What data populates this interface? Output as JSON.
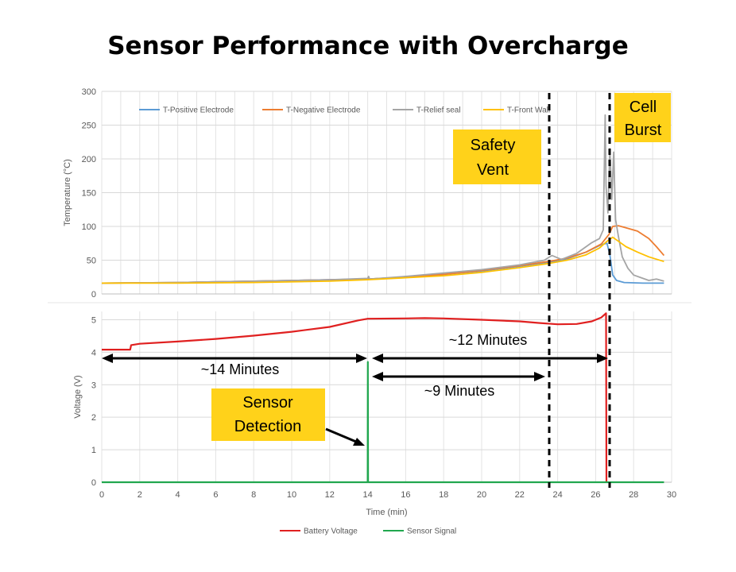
{
  "slide_title": "Sensor Performance with Overcharge",
  "colors": {
    "positive": "#5B9BD5",
    "negative": "#ED7D31",
    "relief": "#A5A5A5",
    "front": "#FFC000",
    "voltage": "#E02020",
    "sensor": "#21A74F",
    "callout": "#FFD21A"
  },
  "chart_data": [
    {
      "type": "line",
      "ylabel": "Temperature (°C)",
      "ylim": [
        0,
        300
      ],
      "yticks": [
        "0",
        "50",
        "100",
        "150",
        "200",
        "250",
        "300"
      ],
      "xlim": [
        0,
        30
      ],
      "grid": true,
      "legend_position": "top",
      "series": [
        {
          "name": "T-Positive Electrode",
          "color": "#5B9BD5",
          "points": [
            [
              0,
              16
            ],
            [
              4,
              17
            ],
            [
              8,
              19
            ],
            [
              12,
              21
            ],
            [
              14,
              22
            ],
            [
              16,
              25
            ],
            [
              18,
              29
            ],
            [
              20,
              34
            ],
            [
              22,
              41
            ],
            [
              23.5,
              47
            ],
            [
              24.5,
              52
            ],
            [
              25.5,
              62
            ],
            [
              26.3,
              73
            ],
            [
              26.6,
              75
            ],
            [
              26.75,
              58
            ],
            [
              26.9,
              28
            ],
            [
              27.1,
              20
            ],
            [
              27.5,
              17
            ],
            [
              28.5,
              16
            ],
            [
              29.6,
              16
            ]
          ]
        },
        {
          "name": "T-Negative Electrode",
          "color": "#ED7D31",
          "points": [
            [
              0,
              16
            ],
            [
              4,
              17
            ],
            [
              8,
              19
            ],
            [
              12,
              21
            ],
            [
              14,
              22
            ],
            [
              16,
              25
            ],
            [
              18,
              29
            ],
            [
              20,
              35
            ],
            [
              22,
              42
            ],
            [
              23.5,
              48
            ],
            [
              24.5,
              53
            ],
            [
              25.5,
              62
            ],
            [
              26.3,
              74
            ],
            [
              26.7,
              88
            ],
            [
              26.9,
              100
            ],
            [
              27.2,
              101
            ],
            [
              27.6,
              98
            ],
            [
              28.2,
              93
            ],
            [
              28.8,
              82
            ],
            [
              29.2,
              70
            ],
            [
              29.6,
              57
            ]
          ]
        },
        {
          "name": "T-Relief seal",
          "color": "#A5A5A5",
          "points": [
            [
              0,
              16
            ],
            [
              4,
              17
            ],
            [
              8,
              19
            ],
            [
              12,
              21
            ],
            [
              14,
              23
            ],
            [
              14.05,
              26
            ],
            [
              14.1,
              22
            ],
            [
              16,
              26
            ],
            [
              18,
              31
            ],
            [
              20,
              36
            ],
            [
              22,
              43
            ],
            [
              23.3,
              50
            ],
            [
              23.7,
              57
            ],
            [
              24.2,
              51
            ],
            [
              25,
              60
            ],
            [
              25.8,
              76
            ],
            [
              26.2,
              82
            ],
            [
              26.4,
              95
            ],
            [
              26.5,
              265
            ],
            [
              26.55,
              160
            ],
            [
              26.65,
              120
            ],
            [
              26.75,
              215
            ],
            [
              26.85,
              140
            ],
            [
              26.95,
              210
            ],
            [
              27.05,
              110
            ],
            [
              27.2,
              85
            ],
            [
              27.4,
              55
            ],
            [
              27.7,
              38
            ],
            [
              28,
              28
            ],
            [
              28.4,
              24
            ],
            [
              28.8,
              20
            ],
            [
              29.2,
              22
            ],
            [
              29.6,
              19
            ]
          ]
        },
        {
          "name": "T-Front Wall",
          "color": "#FFC000",
          "points": [
            [
              0,
              16
            ],
            [
              4,
              16
            ],
            [
              8,
              17
            ],
            [
              12,
              19
            ],
            [
              14,
              21
            ],
            [
              16,
              24
            ],
            [
              18,
              27
            ],
            [
              20,
              32
            ],
            [
              22,
              39
            ],
            [
              23.5,
              45
            ],
            [
              24.5,
              50
            ],
            [
              25.5,
              58
            ],
            [
              26.2,
              68
            ],
            [
              26.6,
              78
            ],
            [
              26.9,
              84
            ],
            [
              27.2,
              78
            ],
            [
              27.6,
              70
            ],
            [
              28.2,
              62
            ],
            [
              28.8,
              55
            ],
            [
              29.6,
              48
            ]
          ]
        }
      ]
    },
    {
      "type": "line",
      "xlabel": "Time (min)",
      "ylabel": "Voltage (V)",
      "ylim": [
        0,
        5.5
      ],
      "yticks": [
        "0",
        "1",
        "2",
        "3",
        "4",
        "5"
      ],
      "xlim": [
        0,
        30
      ],
      "xticks": [
        "0",
        "2",
        "4",
        "6",
        "8",
        "10",
        "12",
        "14",
        "16",
        "18",
        "20",
        "22",
        "24",
        "26",
        "28",
        "30"
      ],
      "grid": true,
      "legend_position": "bottom",
      "series": [
        {
          "name": "Battery Voltage",
          "color": "#E02020",
          "points": [
            [
              0,
              4.08
            ],
            [
              1.5,
              4.08
            ],
            [
              1.55,
              4.22
            ],
            [
              2,
              4.26
            ],
            [
              4,
              4.33
            ],
            [
              6,
              4.41
            ],
            [
              8,
              4.51
            ],
            [
              10,
              4.63
            ],
            [
              12,
              4.78
            ],
            [
              13.5,
              4.98
            ],
            [
              14,
              5.03
            ],
            [
              16,
              5.04
            ],
            [
              17,
              5.05
            ],
            [
              18,
              5.04
            ],
            [
              20,
              5.0
            ],
            [
              22,
              4.95
            ],
            [
              23,
              4.9
            ],
            [
              24,
              4.86
            ],
            [
              25,
              4.87
            ],
            [
              25.8,
              4.95
            ],
            [
              26.3,
              5.07
            ],
            [
              26.55,
              5.2
            ],
            [
              26.57,
              0
            ]
          ]
        },
        {
          "name": "Sensor Signal",
          "color": "#21A74F",
          "points": [
            [
              0,
              0
            ],
            [
              14,
              0
            ],
            [
              14.01,
              3.7
            ],
            [
              14.02,
              0
            ],
            [
              29.6,
              0
            ]
          ]
        }
      ]
    }
  ],
  "annotations": {
    "safety_vent_line1": "Safety",
    "safety_vent_line2": "Vent",
    "cell_burst_line1": "Cell",
    "cell_burst_line2": "Burst",
    "sensor_detection_line1": "Sensor",
    "sensor_detection_line2": "Detection",
    "span_14": "~14 Minutes",
    "span_12": "~12 Minutes",
    "span_9": "~9 Minutes"
  }
}
